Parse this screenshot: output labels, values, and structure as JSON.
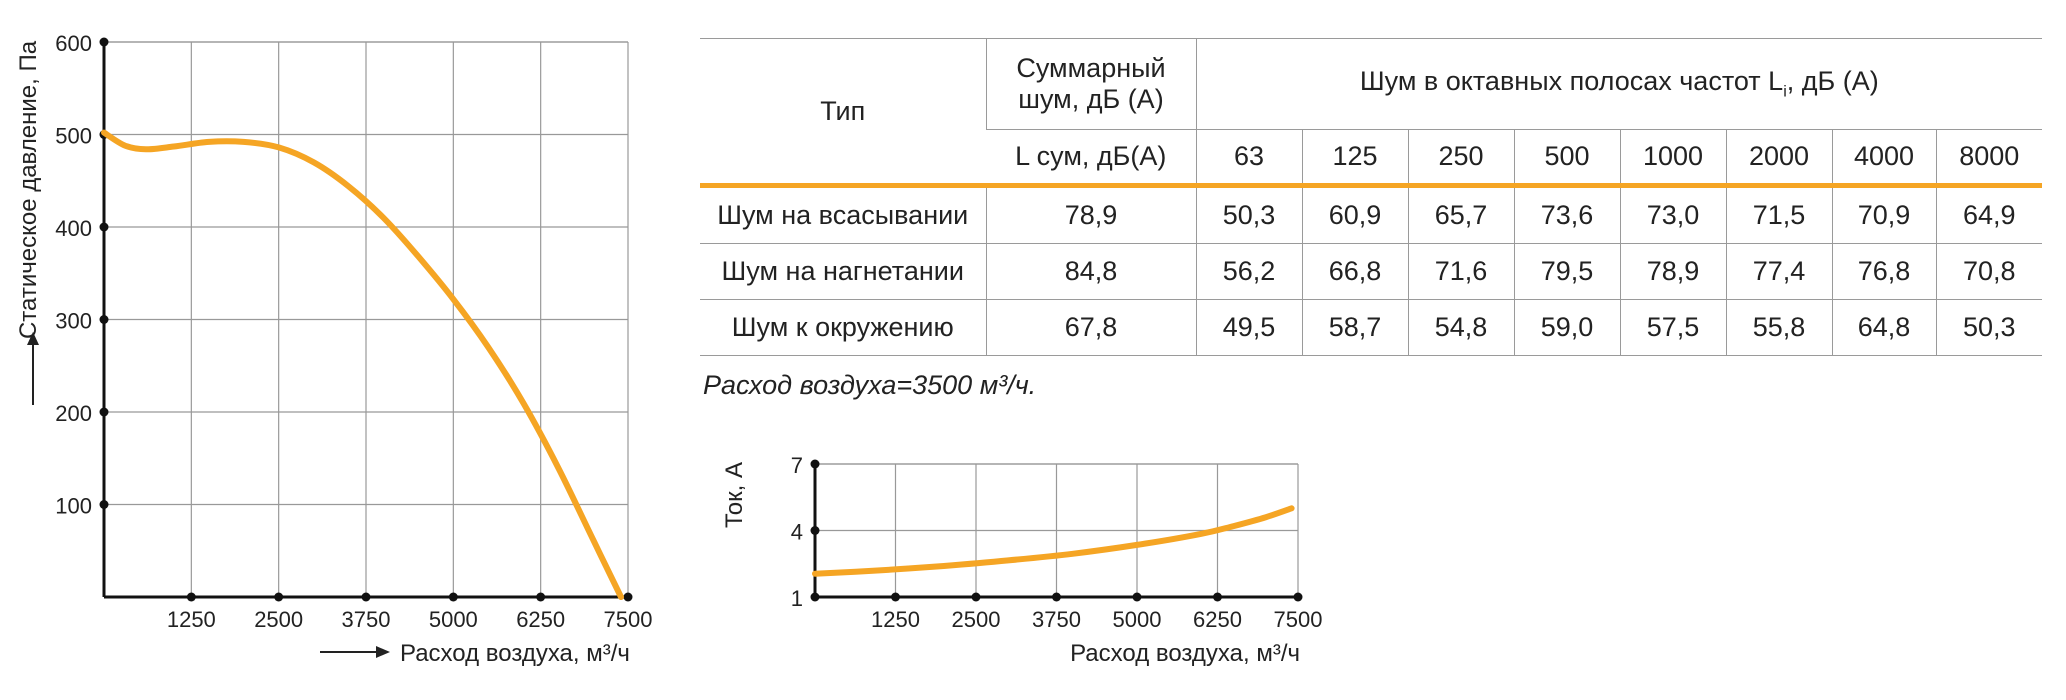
{
  "colors": {
    "curve": "#f5a524",
    "grid": "#999999",
    "axis": "#111111",
    "rule": "#f5a524"
  },
  "chart_data": [
    {
      "type": "line",
      "xlabel": "Расход воздуха, м³/ч",
      "ylabel": "Статическое давление, Па",
      "x_ticks": [
        "1250",
        "2500",
        "3750",
        "5000",
        "6250",
        "7500"
      ],
      "y_ticks": [
        "100",
        "200",
        "300",
        "400",
        "500",
        "600"
      ],
      "xlim": [
        0,
        7500
      ],
      "ylim": [
        0,
        600
      ],
      "grid": true,
      "x": [
        0,
        300,
        600,
        1000,
        1500,
        2000,
        2500,
        3000,
        3500,
        4000,
        4500,
        5000,
        5500,
        6000,
        6500,
        7000,
        7400
      ],
      "y": [
        502,
        488,
        484,
        487,
        492,
        492,
        486,
        470,
        444,
        410,
        368,
        322,
        270,
        210,
        140,
        62,
        0
      ]
    },
    {
      "type": "line",
      "xlabel": "Расход воздуха, м³/ч",
      "ylabel": "Ток, А",
      "x_ticks": [
        "1250",
        "2500",
        "3750",
        "5000",
        "6250",
        "7500"
      ],
      "y_ticks": [
        "1",
        "4",
        "7"
      ],
      "xlim": [
        0,
        7500
      ],
      "ylim": [
        1,
        7
      ],
      "grid": true,
      "x": [
        0,
        1000,
        2000,
        3000,
        4000,
        5000,
        6000,
        6500,
        7000,
        7400
      ],
      "y": [
        2.05,
        2.2,
        2.4,
        2.65,
        2.95,
        3.35,
        3.85,
        4.2,
        4.6,
        5.0
      ]
    }
  ],
  "table": {
    "type_header": "Тип",
    "total_header": [
      "Суммарный",
      "шум, дБ (А)"
    ],
    "octave_header": "Шум в октавных полосах частот L",
    "octave_header_sub": "i",
    "octave_header_tail": ", дБ (А)",
    "total_sub_header": "L сум, дБ(А)",
    "frequencies": [
      "63",
      "125",
      "250",
      "500",
      "1000",
      "2000",
      "4000",
      "8000"
    ],
    "rows": [
      {
        "name": "Шум на всасывании",
        "total": "78,9",
        "values": [
          "50,3",
          "60,9",
          "65,7",
          "73,6",
          "73,0",
          "71,5",
          "70,9",
          "64,9"
        ]
      },
      {
        "name": "Шум на нагнетании",
        "total": "84,8",
        "values": [
          "56,2",
          "66,8",
          "71,6",
          "79,5",
          "78,9",
          "77,4",
          "76,8",
          "70,8"
        ]
      },
      {
        "name": "Шум к окружению",
        "total": "67,8",
        "values": [
          "49,5",
          "58,7",
          "54,8",
          "59,0",
          "57,5",
          "55,8",
          "64,8",
          "50,3"
        ]
      }
    ]
  },
  "note": "Расход воздуха=3500 м³/ч."
}
